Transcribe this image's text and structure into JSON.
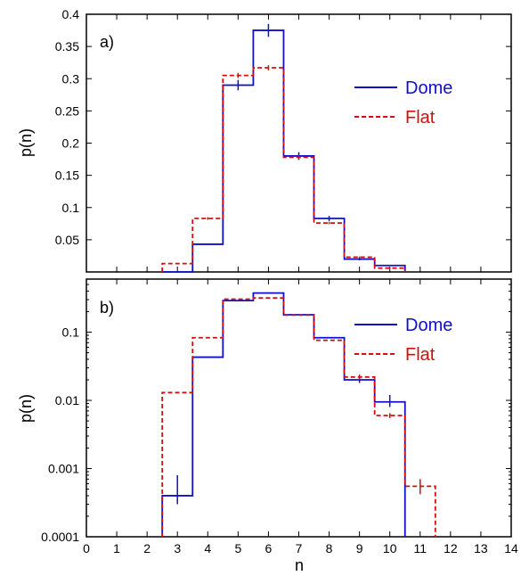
{
  "chart_data": [
    {
      "type": "line",
      "panel_label": "a)",
      "ylabel": "p(n)",
      "xlabel": "",
      "xlim": [
        0,
        14
      ],
      "ylim": [
        0,
        0.4
      ],
      "yscale": "linear",
      "yticks": [
        0.05,
        0.1,
        0.15,
        0.2,
        0.25,
        0.3,
        0.35,
        0.4
      ],
      "ytick_labels": [
        "0.05",
        "0.1",
        "0.15",
        "0.2",
        "0.25",
        "0.3",
        "0.35",
        "0.4"
      ],
      "legend_position": "right",
      "series": [
        {
          "name": "Dome",
          "color": "#1010c8",
          "style": "solid",
          "x": [
            3,
            4,
            5,
            6,
            7,
            8,
            9,
            10
          ],
          "y": [
            0.0,
            0.043,
            0.29,
            0.375,
            0.18,
            0.083,
            0.02,
            0.01
          ],
          "err": [
            0.0,
            0.0,
            0.008,
            0.01,
            0.006,
            0.004,
            0.002,
            0.001
          ]
        },
        {
          "name": "Flat",
          "color": "#d01010",
          "style": "dashed",
          "x": [
            3,
            4,
            5,
            6,
            7,
            8,
            9,
            10
          ],
          "y": [
            0.013,
            0.083,
            0.305,
            0.317,
            0.178,
            0.076,
            0.023,
            0.006
          ],
          "err": [
            0.0,
            0.002,
            0.004,
            0.004,
            0.003,
            0.002,
            0.001,
            0.001
          ]
        }
      ]
    },
    {
      "type": "line",
      "panel_label": "b)",
      "ylabel": "p(n)",
      "xlabel": "n",
      "xlim": [
        0,
        14
      ],
      "ylim": [
        0.0001,
        0.6
      ],
      "yscale": "log",
      "yticks": [
        0.0001,
        0.001,
        0.01,
        0.1
      ],
      "ytick_labels": [
        "0.0001",
        "0.001",
        "0.01",
        "0.1"
      ],
      "xticks": [
        0,
        1,
        2,
        3,
        4,
        5,
        6,
        7,
        8,
        9,
        10,
        11,
        12,
        13,
        14
      ],
      "xtick_labels": [
        "0",
        "1",
        "2",
        "3",
        "4",
        "5",
        "6",
        "7",
        "8",
        "9",
        "10",
        "11",
        "12",
        "13",
        "14"
      ],
      "legend_position": "right",
      "series": [
        {
          "name": "Dome",
          "color": "#1010c8",
          "style": "solid",
          "x": [
            3,
            4,
            5,
            6,
            7,
            8,
            9,
            10
          ],
          "y": [
            0.0004,
            0.043,
            0.29,
            0.375,
            0.18,
            0.083,
            0.02,
            0.0095
          ],
          "err_low": [
            0.0003,
            0.043,
            0.29,
            0.365,
            0.18,
            0.083,
            0.018,
            0.008
          ],
          "err_high": [
            0.0008,
            0.043,
            0.29,
            0.385,
            0.18,
            0.083,
            0.022,
            0.012
          ]
        },
        {
          "name": "Flat",
          "color": "#d01010",
          "style": "dashed",
          "x": [
            3,
            4,
            5,
            6,
            7,
            8,
            9,
            10,
            11
          ],
          "y": [
            0.013,
            0.083,
            0.305,
            0.317,
            0.178,
            0.076,
            0.022,
            0.006,
            0.00055
          ],
          "err_low": [
            0.013,
            0.081,
            0.305,
            0.317,
            0.178,
            0.076,
            0.02,
            0.0055,
            0.00042
          ],
          "err_high": [
            0.013,
            0.085,
            0.305,
            0.317,
            0.178,
            0.076,
            0.024,
            0.0065,
            0.0007
          ]
        }
      ]
    }
  ]
}
